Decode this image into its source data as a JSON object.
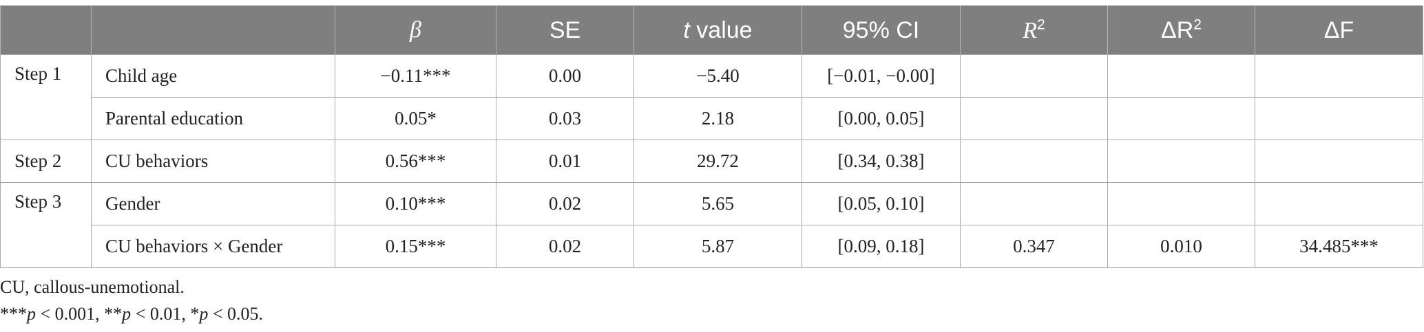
{
  "table": {
    "headers": {
      "col0": "",
      "col1": "",
      "beta": "β",
      "se": "SE",
      "t_italic": "t",
      "t_rest": " value",
      "ci": "95% CI",
      "r2_base": "R",
      "r2_sup": "2",
      "dr2_base": "ΔR",
      "dr2_sup": "2",
      "df": "ΔF"
    },
    "rows": [
      {
        "step": "Step 1",
        "predictor": "Child age",
        "beta": "−0.11***",
        "se": "0.00",
        "t": "−5.40",
        "ci": "[−0.01, −0.00]",
        "r2": "",
        "dr2": "",
        "df": ""
      },
      {
        "step": "",
        "predictor": "Parental education",
        "beta": "0.05*",
        "se": "0.03",
        "t": "2.18",
        "ci": "[0.00, 0.05]",
        "r2": "",
        "dr2": "",
        "df": ""
      },
      {
        "step": "Step 2",
        "predictor": "CU behaviors",
        "beta": "0.56***",
        "se": "0.01",
        "t": "29.72",
        "ci": "[0.34, 0.38]",
        "r2": "",
        "dr2": "",
        "df": ""
      },
      {
        "step": "Step 3",
        "predictor": "Gender",
        "beta": "0.10***",
        "se": "0.02",
        "t": "5.65",
        "ci": "[0.05, 0.10]",
        "r2": "",
        "dr2": "",
        "df": ""
      },
      {
        "step": "",
        "predictor": "CU behaviors × Gender",
        "beta": "0.15***",
        "se": "0.02",
        "t": "5.87",
        "ci": "[0.09, 0.18]",
        "r2": "0.347",
        "dr2": "0.010",
        "df": "34.485***"
      }
    ]
  },
  "footnotes": {
    "abbrev": "CU, callous-unemotional.",
    "sig_1a": "***",
    "sig_1p": "p",
    "sig_1b": " < 0.001, **",
    "sig_2p": "p",
    "sig_2b": " < 0.01, *",
    "sig_3p": "p",
    "sig_3b": " < 0.05."
  }
}
